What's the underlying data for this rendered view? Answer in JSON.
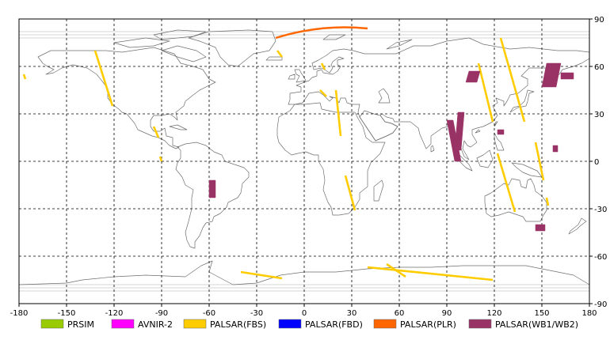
{
  "map": {
    "x_ticks": [
      "-180",
      "-150",
      "-120",
      "-90",
      "-60",
      "-30",
      "0",
      "30",
      "60",
      "90",
      "120",
      "150",
      "180"
    ],
    "y_ticks": [
      "90",
      "60",
      "30",
      "0",
      "-30",
      "-60",
      "-90"
    ],
    "lon_range": [
      -180,
      180
    ],
    "lat_range": [
      -90,
      90
    ],
    "grid": "dashed"
  },
  "legend": {
    "items": [
      {
        "label": "PRSIM",
        "color": "#99cc00"
      },
      {
        "label": "AVNIR-2",
        "color": "#ff00ff"
      },
      {
        "label": "PALSAR(FBS)",
        "color": "#ffcc00"
      },
      {
        "label": "PALSAR(FBD)",
        "color": "#0000ff"
      },
      {
        "label": "PALSAR(PLR)",
        "color": "#ff6600"
      },
      {
        "label": "PALSAR(WB1/WB2)",
        "color": "#993366"
      }
    ]
  },
  "footprints": {
    "fbs_strips": [
      [
        [
          -132,
          70
        ],
        [
          -121,
          35
        ]
      ],
      [
        [
          -177,
          55
        ],
        [
          -176,
          52
        ]
      ],
      [
        [
          -95,
          22
        ],
        [
          -92,
          15
        ]
      ],
      [
        [
          -91,
          3
        ],
        [
          -90,
          0
        ]
      ],
      [
        [
          -17,
          70
        ],
        [
          -14,
          66
        ]
      ],
      [
        [
          10,
          45
        ],
        [
          14,
          41
        ]
      ],
      [
        [
          20,
          45
        ],
        [
          23,
          16
        ]
      ],
      [
        [
          26,
          -9
        ],
        [
          32,
          -31
        ]
      ],
      [
        [
          110,
          62
        ],
        [
          119,
          25
        ]
      ],
      [
        [
          124,
          78
        ],
        [
          139,
          25
        ]
      ],
      [
        [
          122,
          5
        ],
        [
          133,
          -32
        ]
      ],
      [
        [
          146,
          12
        ],
        [
          151,
          -12
        ]
      ],
      [
        [
          153,
          -23
        ],
        [
          154,
          -28
        ]
      ],
      [
        [
          -40,
          -70
        ],
        [
          -14,
          -74
        ]
      ],
      [
        [
          52,
          -65
        ],
        [
          64,
          -73
        ]
      ],
      [
        [
          40,
          -67
        ],
        [
          119,
          -75
        ]
      ],
      [
        [
          11,
          62
        ],
        [
          13,
          58
        ]
      ]
    ],
    "plr_strips": [
      [
        [
          -18,
          78
        ],
        [
          40,
          84
        ]
      ]
    ],
    "wb_swaths": [
      [
        [
          -60,
          -12
        ],
        [
          -56,
          -12
        ],
        [
          -56,
          -23
        ],
        [
          -60,
          -23
        ]
      ],
      [
        [
          90,
          26
        ],
        [
          94,
          26
        ],
        [
          99,
          0
        ],
        [
          95,
          0
        ]
      ],
      [
        [
          97,
          31
        ],
        [
          101,
          31
        ],
        [
          99,
          7
        ],
        [
          95,
          7
        ]
      ],
      [
        [
          104,
          57
        ],
        [
          111,
          57
        ],
        [
          109,
          50
        ],
        [
          102,
          50
        ]
      ],
      [
        [
          153,
          62
        ],
        [
          162,
          62
        ],
        [
          159,
          47
        ],
        [
          150,
          47
        ]
      ],
      [
        [
          162,
          56
        ],
        [
          170,
          56
        ],
        [
          170,
          52
        ],
        [
          162,
          52
        ]
      ],
      [
        [
          122,
          20
        ],
        [
          126,
          20
        ],
        [
          126,
          17
        ],
        [
          122,
          17
        ]
      ],
      [
        [
          157,
          10
        ],
        [
          160,
          10
        ],
        [
          160,
          6
        ],
        [
          157,
          6
        ]
      ],
      [
        [
          146,
          -40
        ],
        [
          152,
          -40
        ],
        [
          152,
          -44
        ],
        [
          146,
          -44
        ]
      ]
    ]
  }
}
